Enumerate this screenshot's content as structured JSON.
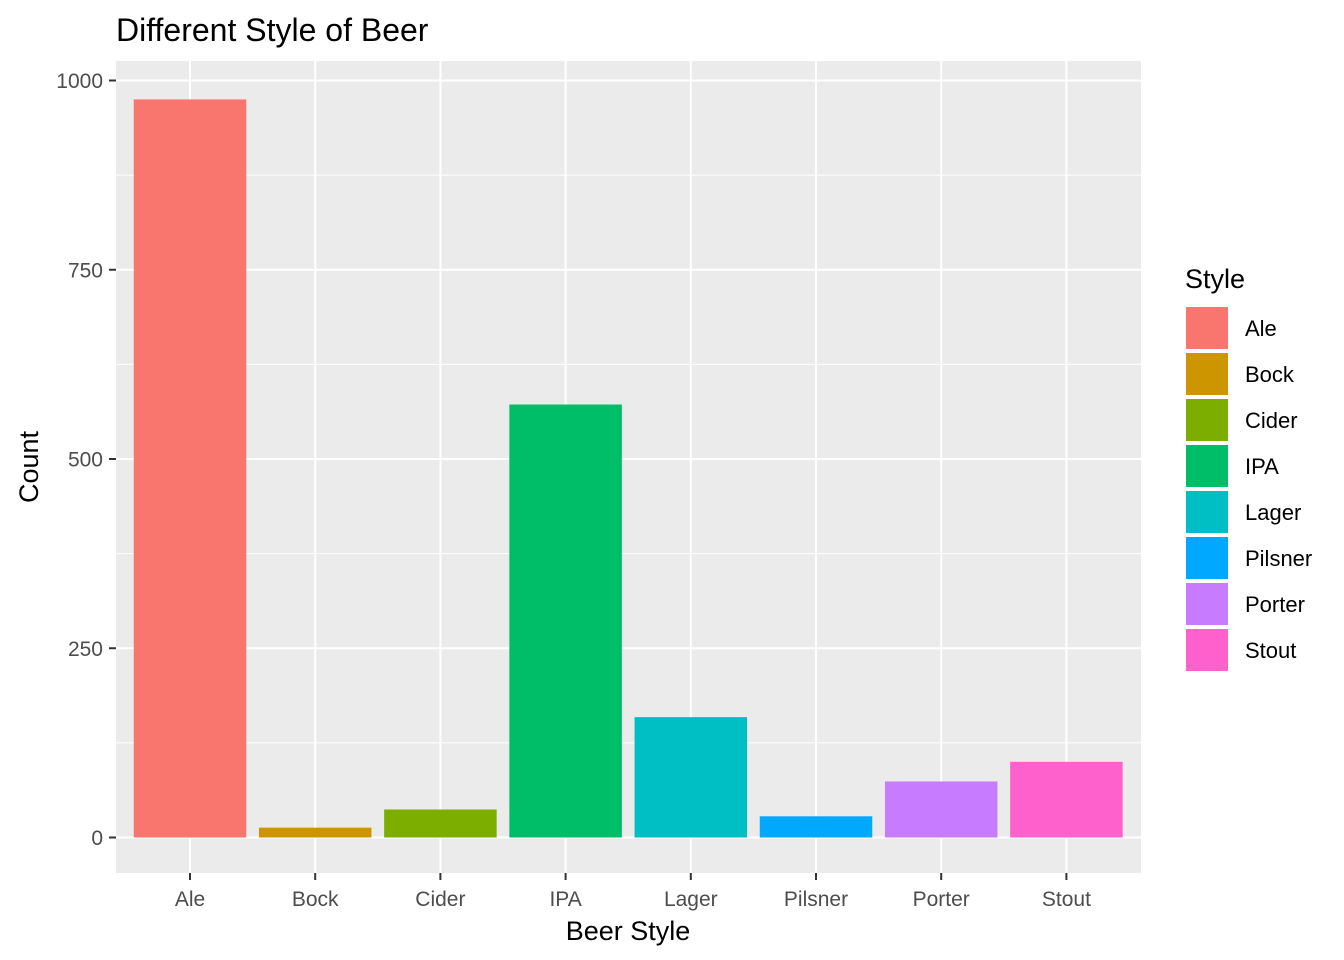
{
  "chart_data": {
    "type": "bar",
    "title": "Different Style of Beer",
    "xlabel": "Beer Style",
    "ylabel": "Count",
    "categories": [
      "Ale",
      "Bock",
      "Cider",
      "IPA",
      "Lager",
      "Pilsner",
      "Porter",
      "Stout"
    ],
    "values": [
      975,
      13,
      37,
      572,
      159,
      28,
      74,
      100
    ],
    "colors": [
      "#F8766D",
      "#CD9600",
      "#7CAE00",
      "#00BE67",
      "#00BFC4",
      "#00A9FF",
      "#C77CFF",
      "#FF61CC"
    ],
    "ylim": [
      0,
      1000
    ],
    "yticks": [
      0,
      250,
      500,
      750,
      1000
    ],
    "ytick_labels": [
      "0",
      "250",
      "500",
      "750",
      "1000"
    ],
    "grid": true,
    "panel_background": "#EBEBEB",
    "gridline_color": "#FFFFFF",
    "legend": {
      "title": "Style",
      "placement": "right",
      "entries": [
        "Ale",
        "Bock",
        "Cider",
        "IPA",
        "Lager",
        "Pilsner",
        "Porter",
        "Stout"
      ]
    }
  }
}
